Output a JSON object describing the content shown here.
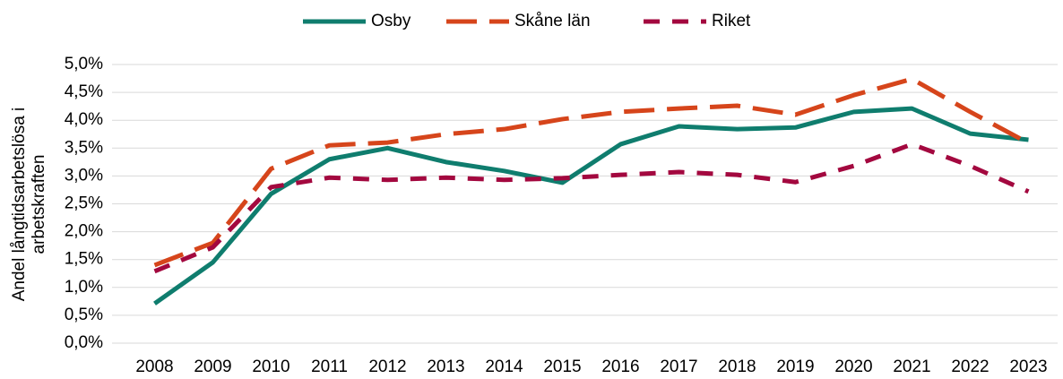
{
  "chart_data": {
    "type": "line",
    "ylabel_lines": [
      "Andel långtidsarbetslösa i",
      "arbetskraften"
    ],
    "categories": [
      "2008",
      "2009",
      "2010",
      "2011",
      "2012",
      "2013",
      "2014",
      "2015",
      "2016",
      "2017",
      "2018",
      "2019",
      "2020",
      "2021",
      "2022",
      "2023"
    ],
    "series": [
      {
        "name": "Osby",
        "color": "#0f7d6e",
        "dash": "solid",
        "values": [
          0.71,
          1.45,
          2.68,
          3.3,
          3.5,
          3.25,
          3.09,
          2.88,
          3.57,
          3.89,
          3.84,
          3.87,
          4.15,
          4.21,
          3.76,
          3.65
        ]
      },
      {
        "name": "Skåne län",
        "color": "#d6451b",
        "dash": "long-dash",
        "values": [
          1.4,
          1.8,
          3.13,
          3.55,
          3.6,
          3.75,
          3.84,
          4.02,
          4.15,
          4.21,
          4.26,
          4.1,
          4.45,
          4.74,
          4.15,
          3.59
        ]
      },
      {
        "name": "Riket",
        "color": "#a3083f",
        "dash": "dash",
        "values": [
          1.29,
          1.72,
          2.8,
          2.97,
          2.93,
          2.97,
          2.93,
          2.96,
          3.02,
          3.07,
          3.02,
          2.89,
          3.18,
          3.57,
          3.18,
          2.72
        ]
      }
    ],
    "ylim": [
      0,
      5
    ],
    "yticks": [
      {
        "value": 0,
        "label": "0,0%"
      },
      {
        "value": 0.5,
        "label": "0,5%"
      },
      {
        "value": 1,
        "label": "1,0%"
      },
      {
        "value": 1.5,
        "label": "1,5%"
      },
      {
        "value": 2,
        "label": "2,0%"
      },
      {
        "value": 2.5,
        "label": "2,5%"
      },
      {
        "value": 3,
        "label": "3,0%"
      },
      {
        "value": 3.5,
        "label": "3,5%"
      },
      {
        "value": 4,
        "label": "4,0%"
      },
      {
        "value": 4.5,
        "label": "4,5%"
      },
      {
        "value": 5,
        "label": "5,0%"
      }
    ],
    "grid": true,
    "legend": "top"
  }
}
